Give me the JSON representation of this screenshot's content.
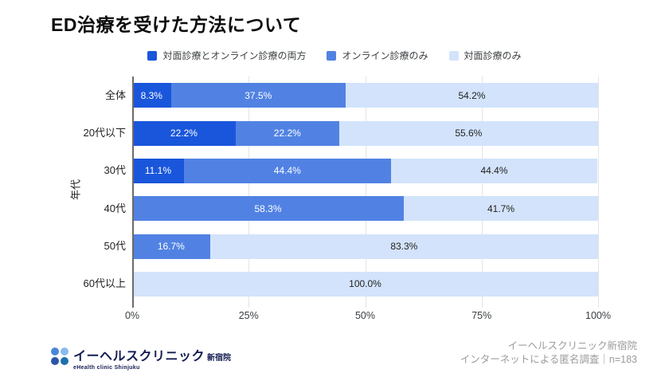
{
  "title": "ED治療を受けた方法について",
  "chart_data": {
    "type": "bar",
    "orientation": "horizontal",
    "stacked": true,
    "grid": "vertical",
    "legend_position": "top",
    "title": "ED治療を受けた方法について",
    "ylabel": "年代",
    "xlim": [
      0,
      100
    ],
    "x_ticks": [
      "0%",
      "25%",
      "50%",
      "75%",
      "100%"
    ],
    "categories": [
      "全体",
      "20代以下",
      "30代",
      "40代",
      "50代",
      "60代以上"
    ],
    "series": [
      {
        "name": "対面診療とオンライン診療の両方",
        "color": "#1A56DB",
        "label_color": "#FFFFFF",
        "values": [
          8.3,
          22.2,
          11.1,
          0,
          0,
          0
        ]
      },
      {
        "name": "オンライン診療のみ",
        "color": "#5182E3",
        "label_color": "#FFFFFF",
        "values": [
          37.5,
          22.2,
          44.4,
          58.3,
          16.7,
          0
        ]
      },
      {
        "name": "対面診療のみ",
        "color": "#D3E3FB",
        "label_color": "#1F1F1F",
        "values": [
          54.2,
          55.6,
          44.4,
          41.7,
          83.3,
          100.0
        ]
      }
    ],
    "value_suffix": "%",
    "value_decimals": 1
  },
  "colors": {
    "axis_line": "#6B6B6B",
    "gridline": "#E4E4E4",
    "tick_label": "#3C4043",
    "footer_text": "#9B9B9B"
  },
  "footer": {
    "logo": {
      "brand_jp": "イーヘルスクリニック",
      "branch": "新宿院",
      "brand_en": "eHealth clinic Shinjuku",
      "dot_colors": [
        "#4A86D8",
        "#8BB9EC",
        "#2B55A6",
        "#1E6FAE"
      ]
    },
    "source_line1": "イーヘルスクリニック新宿院",
    "source_line2": "インターネットによる匿名調査｜n=183"
  }
}
